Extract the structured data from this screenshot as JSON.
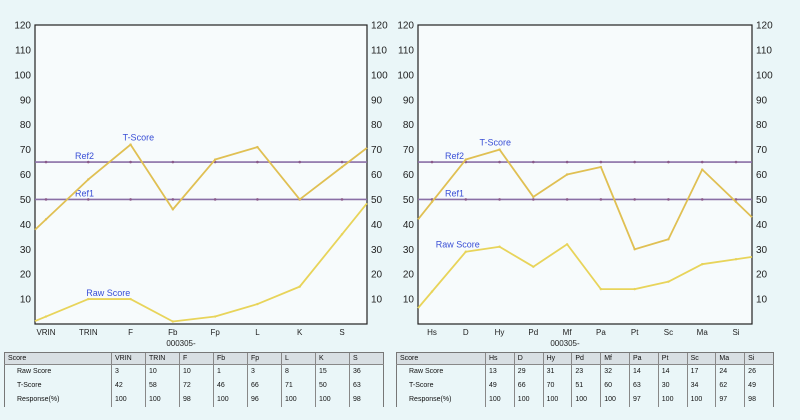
{
  "chart_data": [
    {
      "type": "line",
      "subtitle": "000305-",
      "categories": [
        "VRIN",
        "TRIN",
        "F",
        "Fb",
        "Fp",
        "L",
        "K",
        "S"
      ],
      "ylim": [
        0,
        120
      ],
      "yticks": [
        10,
        20,
        30,
        40,
        50,
        60,
        70,
        80,
        90,
        100,
        110,
        120
      ],
      "grid": false,
      "series": [
        {
          "name": "T-Score",
          "values": [
            42,
            58,
            72,
            46,
            66,
            71,
            50,
            63
          ]
        },
        {
          "name": "Raw Score",
          "values": [
            3,
            10,
            10,
            1,
            3,
            8,
            15,
            36
          ]
        }
      ],
      "reference_lines": [
        {
          "name": "Ref2",
          "value": 65
        },
        {
          "name": "Ref1",
          "value": 50
        }
      ]
    },
    {
      "type": "line",
      "subtitle": "000305-",
      "categories": [
        "Hs",
        "D",
        "Hy",
        "Pd",
        "Mf",
        "Pa",
        "Pt",
        "Sc",
        "Ma",
        "Si"
      ],
      "ylim": [
        0,
        120
      ],
      "yticks": [
        10,
        20,
        30,
        40,
        50,
        60,
        70,
        80,
        90,
        100,
        110,
        120
      ],
      "grid": false,
      "series": [
        {
          "name": "T-Score",
          "values": [
            49,
            66,
            70,
            51,
            60,
            63,
            30,
            34,
            62,
            49
          ]
        },
        {
          "name": "Raw Score",
          "values": [
            13,
            29,
            31,
            23,
            32,
            14,
            14,
            17,
            24,
            26
          ]
        }
      ],
      "reference_lines": [
        {
          "name": "Ref2",
          "value": 65
        },
        {
          "name": "Ref1",
          "value": 50
        }
      ]
    }
  ],
  "colors": {
    "t_score": "#e0c053",
    "raw_score": "#e8d45a",
    "ref2": "#8a6fa6",
    "ref1": "#8a6fa6",
    "labels": "#3a4fd6"
  },
  "tables": [
    {
      "header": [
        "Score",
        "VRIN",
        "TRIN",
        "F",
        "Fb",
        "Fp",
        "L",
        "K",
        "S"
      ],
      "rows": [
        [
          "Raw Score",
          "3",
          "10",
          "10",
          "1",
          "3",
          "8",
          "15",
          "36"
        ],
        [
          "T-Score",
          "42",
          "58",
          "72",
          "46",
          "66",
          "71",
          "50",
          "63"
        ],
        [
          "Response(%)",
          "100",
          "100",
          "98",
          "100",
          "96",
          "100",
          "100",
          "98"
        ]
      ]
    },
    {
      "header": [
        "Score",
        "Hs",
        "D",
        "Hy",
        "Pd",
        "Mf",
        "Pa",
        "Pt",
        "Sc",
        "Ma",
        "Si"
      ],
      "rows": [
        [
          "Raw Score",
          "13",
          "29",
          "31",
          "23",
          "32",
          "14",
          "14",
          "17",
          "24",
          "26"
        ],
        [
          "T-Score",
          "49",
          "66",
          "70",
          "51",
          "60",
          "63",
          "30",
          "34",
          "62",
          "49"
        ],
        [
          "Response(%)",
          "100",
          "100",
          "100",
          "100",
          "100",
          "97",
          "100",
          "100",
          "97",
          "98"
        ]
      ]
    }
  ]
}
